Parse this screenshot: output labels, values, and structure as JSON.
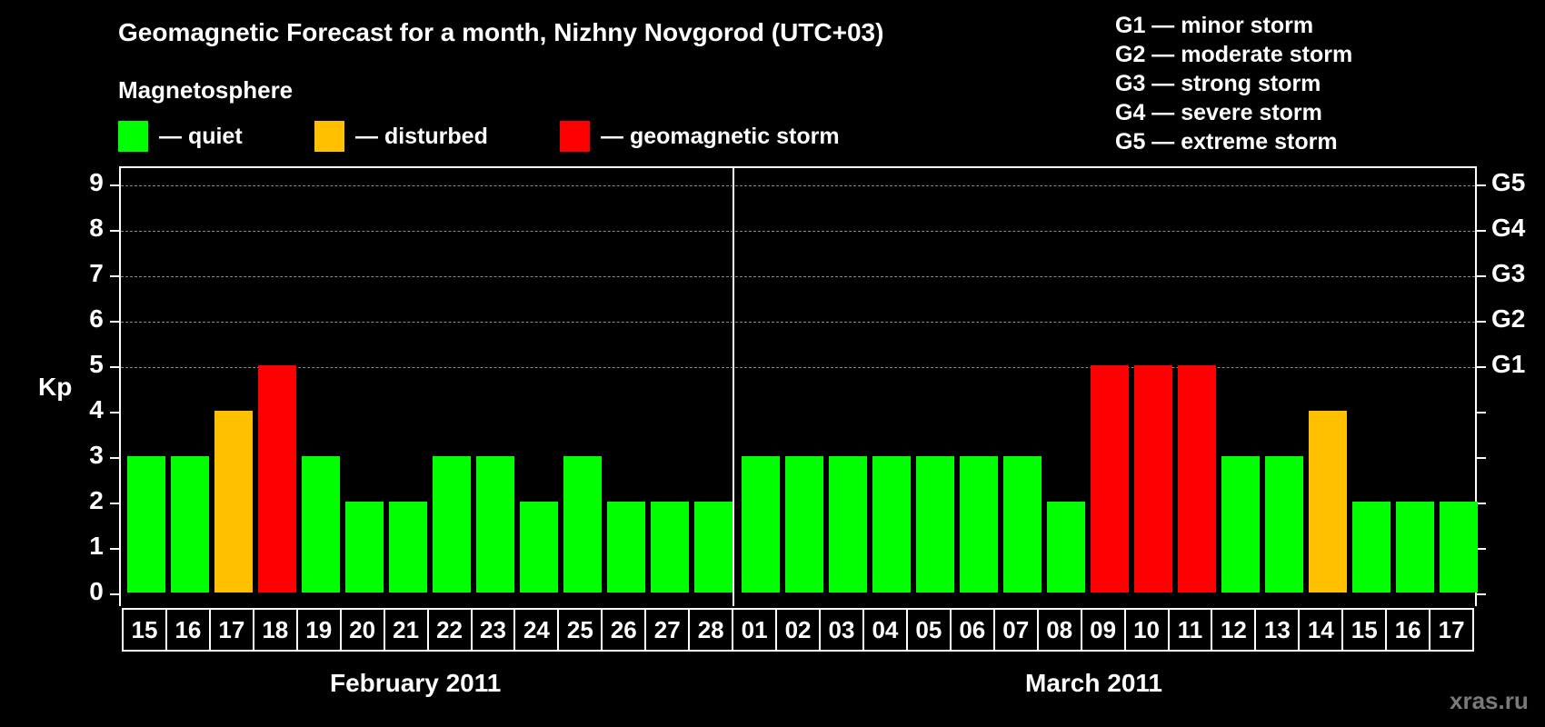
{
  "header": {
    "title": "Geomagnetic Forecast for a month, Nizhny Novgorod (UTC+03)",
    "subtitle": "Magnetosphere"
  },
  "legend": [
    {
      "label": "— quiet",
      "color": "#00ff00"
    },
    {
      "label": "— disturbed",
      "color": "#ffc000"
    },
    {
      "label": "— geomagnetic storm",
      "color": "#ff0000"
    }
  ],
  "g_scale": [
    "G1 — minor storm",
    "G2 — moderate storm",
    "G3 — strong storm",
    "G4 — severe storm",
    "G5 — extreme storm"
  ],
  "axis": {
    "ylabel": "Kp",
    "yticks": [
      "0",
      "1",
      "2",
      "3",
      "4",
      "5",
      "6",
      "7",
      "8",
      "9"
    ],
    "right_ticks": {
      "5": "G1",
      "6": "G2",
      "7": "G3",
      "8": "G4",
      "9": "G5"
    }
  },
  "months": [
    {
      "label": "February 2011"
    },
    {
      "label": "March 2011"
    }
  ],
  "watermark": "xras.ru",
  "chart_data": {
    "type": "bar",
    "title": "Geomagnetic Forecast for a month, Nizhny Novgorod (UTC+03)",
    "subtitle": "Magnetosphere",
    "xlabel": "",
    "ylabel": "Kp",
    "ylim": [
      0,
      9
    ],
    "grid": "dashed horizontal at 5,6,7,8,9",
    "categories": [
      "15",
      "16",
      "17",
      "18",
      "19",
      "20",
      "21",
      "22",
      "23",
      "24",
      "25",
      "26",
      "27",
      "28",
      "01",
      "02",
      "03",
      "04",
      "05",
      "06",
      "07",
      "08",
      "09",
      "10",
      "11",
      "12",
      "13",
      "14",
      "15",
      "16",
      "17"
    ],
    "month_groups": [
      {
        "label": "February 2011",
        "days": [
          "15",
          "16",
          "17",
          "18",
          "19",
          "20",
          "21",
          "22",
          "23",
          "24",
          "25",
          "26",
          "27",
          "28"
        ]
      },
      {
        "label": "March 2011",
        "days": [
          "01",
          "02",
          "03",
          "04",
          "05",
          "06",
          "07",
          "08",
          "09",
          "10",
          "11",
          "12",
          "13",
          "14",
          "15",
          "16",
          "17"
        ]
      }
    ],
    "values": [
      3,
      3,
      4,
      5,
      3,
      2,
      2,
      3,
      3,
      2,
      3,
      2,
      2,
      2,
      3,
      3,
      3,
      3,
      3,
      3,
      3,
      2,
      5,
      5,
      5,
      3,
      3,
      4,
      2,
      2,
      2
    ],
    "status": [
      "quiet",
      "quiet",
      "disturbed",
      "storm",
      "quiet",
      "quiet",
      "quiet",
      "quiet",
      "quiet",
      "quiet",
      "quiet",
      "quiet",
      "quiet",
      "quiet",
      "quiet",
      "quiet",
      "quiet",
      "quiet",
      "quiet",
      "quiet",
      "quiet",
      "quiet",
      "storm",
      "storm",
      "storm",
      "quiet",
      "quiet",
      "disturbed",
      "quiet",
      "quiet",
      "quiet"
    ],
    "status_colors": {
      "quiet": "#00ff00",
      "disturbed": "#ffc000",
      "storm": "#ff0000"
    },
    "legend": [
      "quiet",
      "disturbed",
      "geomagnetic storm"
    ],
    "secondary_axis": {
      "5": "G1",
      "6": "G2",
      "7": "G3",
      "8": "G4",
      "9": "G5"
    }
  }
}
